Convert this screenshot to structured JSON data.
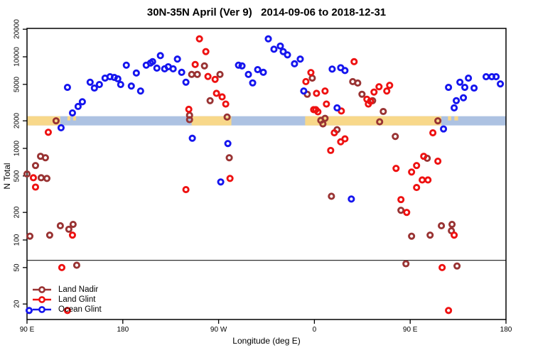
{
  "chart_data": {
    "type": "scatter",
    "title": "30N-35N April (Ver 9)   2014-09-06 to 2018-12-31",
    "xlabel": "Longitude (deg E)",
    "ylabel": "N Total",
    "y_scale": "log",
    "ylim": [
      14,
      21000
    ],
    "y_ticks": [
      20,
      50,
      100,
      200,
      500,
      1000,
      2000,
      5000,
      10000,
      20000
    ],
    "x_span_deg": 450,
    "x_ticks": [
      {
        "pos_deg": 0,
        "label": "90 E"
      },
      {
        "pos_deg": 90,
        "label": "180"
      },
      {
        "pos_deg": 180,
        "label": "90 W"
      },
      {
        "pos_deg": 270,
        "label": "0"
      },
      {
        "pos_deg": 360,
        "label": "90 E"
      },
      {
        "pos_deg": 450,
        "label": "180"
      }
    ],
    "grid": false,
    "threshold_line_n": 60,
    "band": {
      "description": "land-ocean strip drawn at N = 2000",
      "center_n": 2000,
      "ocean_color": "#adc2e2",
      "land_color": "#f8d88a",
      "land_segments_deg": [
        [
          0,
          31.3
        ],
        [
          154.7,
          192.0
        ],
        [
          261.3,
          389.3
        ]
      ],
      "island_segments_deg": [
        [
          38.0,
          40.7
        ],
        [
          43.3,
          46.0
        ],
        [
          395.5,
          398.5
        ],
        [
          401.5,
          405.0
        ]
      ]
    },
    "series": [
      {
        "name": "Land Nadir",
        "color": "#993333",
        "points": [
          [
            12.7,
            820
          ],
          [
            17.3,
            790
          ],
          [
            8,
            650
          ],
          [
            0,
            525
          ],
          [
            13.3,
            478
          ],
          [
            18.7,
            470
          ],
          [
            27.3,
            2000
          ],
          [
            31.3,
            143
          ],
          [
            39.3,
            131
          ],
          [
            43.3,
            148
          ],
          [
            21.3,
            113
          ],
          [
            2.7,
            110
          ],
          [
            46.7,
            53
          ],
          [
            154.7,
            6420
          ],
          [
            160,
            6420
          ],
          [
            166.7,
            7960
          ],
          [
            181.3,
            6420
          ],
          [
            172,
            3320
          ],
          [
            188,
            2200
          ],
          [
            152.7,
            2300
          ],
          [
            152.7,
            2060
          ],
          [
            190,
            790
          ],
          [
            263.3,
            3900
          ],
          [
            268,
            5850
          ],
          [
            276,
            2020
          ],
          [
            278,
            1850
          ],
          [
            280,
            2130
          ],
          [
            291.3,
            1600
          ],
          [
            286,
            300
          ],
          [
            306,
            5360
          ],
          [
            310.7,
            5170
          ],
          [
            314.7,
            3900
          ],
          [
            324.7,
            3320
          ],
          [
            334.7,
            2530
          ],
          [
            331.3,
            1950
          ],
          [
            346,
            1350
          ],
          [
            376,
            780
          ],
          [
            386,
            2000
          ],
          [
            351.3,
            211
          ],
          [
            389.3,
            143
          ],
          [
            399.3,
            148
          ],
          [
            398.7,
            126
          ],
          [
            361.3,
            110
          ],
          [
            378.7,
            113
          ],
          [
            356,
            55
          ],
          [
            404,
            52
          ]
        ]
      },
      {
        "name": "Land Glint",
        "color": "#ee1111",
        "points": [
          [
            162,
            15700
          ],
          [
            168,
            11400
          ],
          [
            158,
            8240
          ],
          [
            170,
            6100
          ],
          [
            176.7,
            5670
          ],
          [
            178,
            3990
          ],
          [
            183.3,
            3650
          ],
          [
            186.7,
            3050
          ],
          [
            152,
            2670
          ],
          [
            190.7,
            470
          ],
          [
            149.3,
            355
          ],
          [
            262,
            5360
          ],
          [
            266.7,
            6730
          ],
          [
            272,
            3990
          ],
          [
            280,
            4230
          ],
          [
            281.3,
            3050
          ],
          [
            295.3,
            2560
          ],
          [
            271.3,
            2650
          ],
          [
            269.3,
            2650
          ],
          [
            273.3,
            2510
          ],
          [
            288.7,
            1480
          ],
          [
            285.3,
            950
          ],
          [
            294.7,
            1180
          ],
          [
            307.3,
            8850
          ],
          [
            319.3,
            3440
          ],
          [
            320.7,
            3050
          ],
          [
            322.7,
            3270
          ],
          [
            326,
            4120
          ],
          [
            330.7,
            4710
          ],
          [
            338,
            4230
          ],
          [
            340.7,
            4880
          ],
          [
            381.3,
            1480
          ],
          [
            298.7,
            1270
          ],
          [
            346.7,
            605
          ],
          [
            361.3,
            552
          ],
          [
            366,
            650
          ],
          [
            372.7,
            820
          ],
          [
            386,
            725
          ],
          [
            371.3,
            452
          ],
          [
            376.7,
            452
          ],
          [
            366,
            374
          ],
          [
            351.3,
            276
          ],
          [
            356.7,
            200
          ],
          [
            401.3,
            113
          ],
          [
            390,
            50
          ],
          [
            396,
            17
          ],
          [
            20,
            1500
          ],
          [
            6,
            478
          ],
          [
            8,
            378
          ],
          [
            32.7,
            50
          ],
          [
            42.7,
            113
          ],
          [
            38,
            17
          ]
        ]
      },
      {
        "name": "Ocean Glint",
        "color": "#1515ee",
        "points": [
          [
            38,
            4640
          ],
          [
            59.3,
            5280
          ],
          [
            63.3,
            4560
          ],
          [
            68,
            4980
          ],
          [
            73.3,
            5850
          ],
          [
            78,
            6060
          ],
          [
            82,
            5950
          ],
          [
            85.3,
            5750
          ],
          [
            88,
            4980
          ],
          [
            93.3,
            8100
          ],
          [
            98,
            4790
          ],
          [
            102.7,
            6650
          ],
          [
            106.7,
            4230
          ],
          [
            112,
            8100
          ],
          [
            116,
            8550
          ],
          [
            118,
            8850
          ],
          [
            122,
            7520
          ],
          [
            125.3,
            10300
          ],
          [
            129.3,
            7390
          ],
          [
            132.7,
            7790
          ],
          [
            137.3,
            7390
          ],
          [
            141.3,
            9440
          ],
          [
            145.3,
            6770
          ],
          [
            149.3,
            5280
          ],
          [
            155.3,
            1290
          ],
          [
            188.7,
            1130
          ],
          [
            198.7,
            8100
          ],
          [
            202,
            7960
          ],
          [
            208,
            6420
          ],
          [
            212,
            5190
          ],
          [
            216.7,
            7250
          ],
          [
            222,
            6770
          ],
          [
            226.7,
            15700
          ],
          [
            232,
            12100
          ],
          [
            238,
            13100
          ],
          [
            240.7,
            11400
          ],
          [
            244.7,
            10500
          ],
          [
            251.3,
            8390
          ],
          [
            256.7,
            9440
          ],
          [
            260,
            4230
          ],
          [
            291.3,
            2770
          ],
          [
            286.7,
            7340
          ],
          [
            294.7,
            7600
          ],
          [
            298.7,
            7080
          ],
          [
            182,
            430
          ],
          [
            304.7,
            280
          ],
          [
            391.3,
            1630
          ],
          [
            396,
            4640
          ],
          [
            401.3,
            2770
          ],
          [
            403.3,
            3320
          ],
          [
            410,
            3570
          ],
          [
            406.7,
            5280
          ],
          [
            411.3,
            4640
          ],
          [
            414.7,
            5850
          ],
          [
            420,
            4560
          ],
          [
            431.3,
            6060
          ],
          [
            436.7,
            6060
          ],
          [
            440.7,
            6060
          ],
          [
            444.7,
            5060
          ],
          [
            32,
            1680
          ],
          [
            42.7,
            2440
          ],
          [
            48,
            2870
          ],
          [
            52,
            3230
          ],
          [
            2,
            17
          ]
        ]
      }
    ]
  },
  "legend": {
    "items": [
      {
        "label": "Land Nadir",
        "color": "#993333"
      },
      {
        "label": "Land Glint",
        "color": "#ee1111"
      },
      {
        "label": "Ocean Glint",
        "color": "#1515ee"
      }
    ]
  }
}
